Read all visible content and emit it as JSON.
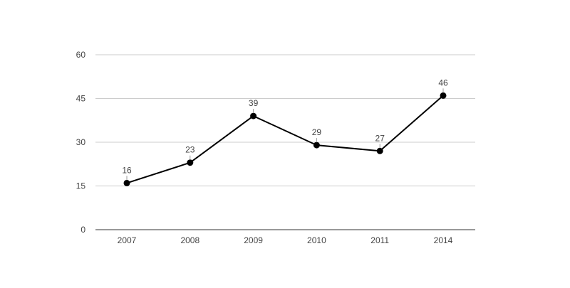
{
  "chart_data": {
    "type": "line",
    "title": "",
    "xlabel": "",
    "ylabel": "",
    "categories": [
      "2007",
      "2008",
      "2009",
      "2010",
      "2011",
      "2014"
    ],
    "series": [
      {
        "values": [
          16,
          23,
          39,
          29,
          27,
          46
        ],
        "color": "#000000"
      }
    ],
    "ylim": [
      0,
      60
    ],
    "yticks": [
      "0",
      "15",
      "30",
      "45",
      "60"
    ],
    "data_labels": [
      "16",
      "23",
      "39",
      "29",
      "27",
      "46"
    ],
    "grid": true,
    "legend": "none",
    "colors": {
      "line": "#000000",
      "grid": "#cccccc",
      "axis": "#333333",
      "text": "#444444"
    }
  }
}
